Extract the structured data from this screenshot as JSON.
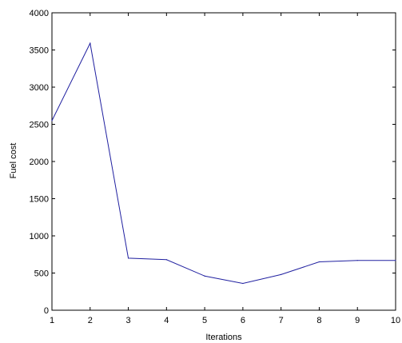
{
  "chart_data": {
    "type": "line",
    "title": "",
    "xlabel": "Iterations",
    "ylabel": "Fuel cost",
    "xlim": [
      1,
      10
    ],
    "ylim": [
      0,
      4000
    ],
    "x_ticks": [
      1,
      2,
      3,
      4,
      5,
      6,
      7,
      8,
      9,
      10
    ],
    "x_tick_labels": [
      "1",
      "2",
      "3",
      "4",
      "5",
      "6",
      "7",
      "8",
      "9",
      "10"
    ],
    "y_ticks": [
      0,
      500,
      1000,
      1500,
      2000,
      2500,
      3000,
      3500,
      4000
    ],
    "y_tick_labels": [
      "0",
      "500",
      "1000",
      "1500",
      "2000",
      "2500",
      "3000",
      "3500",
      "4000"
    ],
    "grid": false,
    "legend": "none",
    "series": [
      {
        "color": "#2020a0",
        "x": [
          1,
          2,
          3,
          4,
          5,
          6,
          7,
          8,
          9,
          10
        ],
        "y": [
          2550,
          3590,
          700,
          680,
          460,
          360,
          480,
          650,
          670,
          670
        ]
      }
    ]
  }
}
